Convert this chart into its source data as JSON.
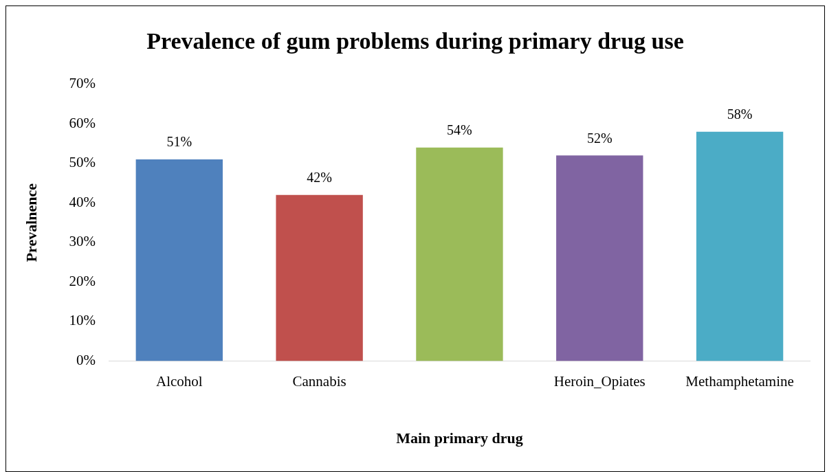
{
  "chart_data": {
    "type": "bar",
    "title": "Prevalence of gum problems during primary drug use",
    "xlabel": "Main primary drug",
    "ylabel": "Prevalnence",
    "categories": [
      "Alcohol",
      "Cannabis",
      null,
      "Heroin_Opiates",
      "Methamphetamine"
    ],
    "values": [
      51,
      42,
      54,
      52,
      58
    ],
    "colors": [
      "#4f81bd",
      "#c0504d",
      "#9bbb59",
      "#8064a2",
      "#4bacc6"
    ],
    "value_labels": [
      "51%",
      "42%",
      "54%",
      "52%",
      "58%"
    ],
    "ylim": [
      0,
      70
    ],
    "yticks": [
      {
        "value": 0,
        "label": "0%"
      },
      {
        "value": 10,
        "label": "10%"
      },
      {
        "value": 20,
        "label": "20%"
      },
      {
        "value": 30,
        "label": "30%"
      },
      {
        "value": 40,
        "label": "40%"
      },
      {
        "value": 50,
        "label": "50%"
      },
      {
        "value": 60,
        "label": "60%"
      },
      {
        "value": 70,
        "label": "70%"
      }
    ],
    "grid": false,
    "legend": false
  }
}
